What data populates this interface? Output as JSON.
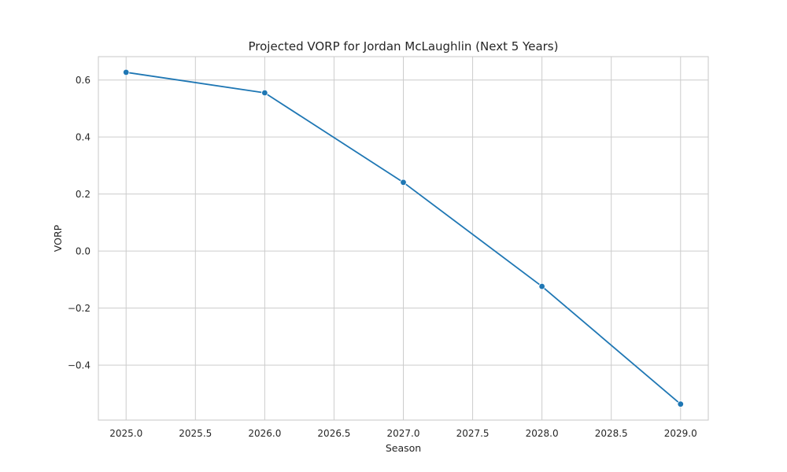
{
  "chart_data": {
    "type": "line",
    "title": "Projected VORP for Jordan McLaughlin (Next 5 Years)",
    "xlabel": "Season",
    "ylabel": "VORP",
    "xlim": [
      2024.8,
      2029.2
    ],
    "ylim": [
      -0.593,
      0.682
    ],
    "x_ticks": [
      2025.0,
      2025.5,
      2026.0,
      2026.5,
      2027.0,
      2027.5,
      2028.0,
      2028.5,
      2029.0
    ],
    "x_tick_labels": [
      "2025.0",
      "2025.5",
      "2026.0",
      "2026.5",
      "2027.0",
      "2027.5",
      "2028.0",
      "2028.5",
      "2029.0"
    ],
    "y_ticks": [
      -0.4,
      -0.2,
      0.0,
      0.2,
      0.4,
      0.6
    ],
    "y_tick_labels": [
      "−0.4",
      "−0.2",
      "0.0",
      "0.2",
      "0.4",
      "0.6"
    ],
    "grid": true,
    "series": [
      {
        "color": "#1f77b4",
        "marker": "circle",
        "x": [
          2025,
          2026,
          2027,
          2028,
          2029
        ],
        "y": [
          0.627,
          0.555,
          0.241,
          -0.124,
          -0.537
        ]
      }
    ]
  }
}
